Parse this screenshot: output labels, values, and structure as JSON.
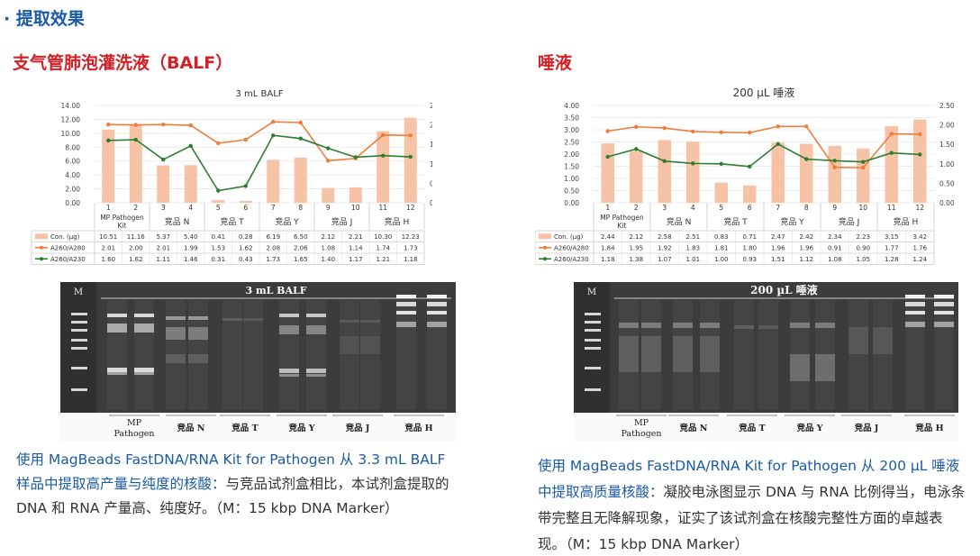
{
  "section_title": "· 提取效果",
  "left": {
    "sample_title": "支气管肺泡灌洗液（BALF）",
    "caption_highlight": "使用 MagBeads FastDNA/RNA Kit for Pathogen 从 3.3 mL BALF 样品中提取高产量与纯度的核酸：",
    "caption_body": "与竞品试剂盒相比，本试剂盒提取的 DNA 和 RNA 产量高、纯度好。（M：15 kbp DNA Marker）",
    "gel": {
      "title": "3 mL BALF",
      "marker_label": "M",
      "lane_group_labels": [
        "MP Pathogen",
        "竞品 N",
        "竞品 T",
        "竞品 Y",
        "竞品 J",
        "竞品 H"
      ]
    }
  },
  "right": {
    "sample_title": "唾液",
    "caption_highlight": "使用 MagBeads FastDNA/RNA Kit for Pathogen 从 200 µL 唾液中提取高质量核酸：",
    "caption_body": "凝胶电泳图显示 DNA 与 RNA 比例得当，电泳条带完整且无降解现象，证实了该试剂盒在核酸完整性方面的卓越表现。（M：15 kbp DNA Marker）",
    "gel": {
      "title": "200 µL 唾液",
      "marker_label": "M",
      "lane_group_labels": [
        "MP Pathogen",
        "竞品 N",
        "竞品 T",
        "竞品 Y",
        "竞品 J",
        "竞品 H"
      ]
    }
  },
  "colors": {
    "bar": "#f6c3a6",
    "a280": "#ee7d3b",
    "a230": "#2e7d32",
    "title_blue": "#1a5ba6",
    "title_red": "#d41f25"
  },
  "chart_data": [
    {
      "type": "bar",
      "title": "3 mL BALF",
      "categories": [
        "1",
        "2",
        "3",
        "4",
        "5",
        "6",
        "7",
        "8",
        "9",
        "10",
        "11",
        "12"
      ],
      "group_labels": [
        "MP Pathogen Kit",
        "竞品 N",
        "竞品 T",
        "竞品 Y",
        "竞品 J",
        "竞品 H"
      ],
      "ylim": [
        0,
        14
      ],
      "yticks": [
        "0.00",
        "2.00",
        "4.00",
        "6.00",
        "8.00",
        "10.00",
        "12.00",
        "14.00"
      ],
      "y2lim": [
        0,
        2.5
      ],
      "y2ticks": [
        "0.00",
        "0.50",
        "1.00",
        "1.50",
        "2.00",
        "2.50"
      ],
      "series": [
        {
          "name": "Con. (µg)",
          "type": "bar",
          "axis": "left",
          "values": [
            10.51,
            11.16,
            5.37,
            5.4,
            0.41,
            0.28,
            6.19,
            6.5,
            2.12,
            2.21,
            10.3,
            12.23
          ]
        },
        {
          "name": "A260/A280",
          "type": "line",
          "axis": "right",
          "values": [
            2.01,
            2.0,
            2.01,
            1.99,
            1.53,
            1.62,
            2.08,
            2.06,
            1.08,
            1.14,
            1.74,
            1.73
          ]
        },
        {
          "name": "A260/A230",
          "type": "line",
          "axis": "right",
          "values": [
            1.6,
            1.62,
            1.11,
            1.46,
            0.31,
            0.43,
            1.73,
            1.65,
            1.4,
            1.17,
            1.21,
            1.18
          ]
        }
      ]
    },
    {
      "type": "bar",
      "title": "200 µL 唾液",
      "categories": [
        "1",
        "2",
        "3",
        "4",
        "5",
        "6",
        "7",
        "8",
        "9",
        "10",
        "11",
        "12"
      ],
      "group_labels": [
        "MP Pathogen Kit",
        "竞品 N",
        "竞品 T",
        "竞品 Y",
        "竞品 J",
        "竞品 H"
      ],
      "ylim": [
        0,
        4
      ],
      "yticks": [
        "0.00",
        "0.50",
        "1.00",
        "1.50",
        "2.00",
        "2.50",
        "3.00",
        "3.50",
        "4.00"
      ],
      "y2lim": [
        0,
        2.5
      ],
      "y2ticks": [
        "0.00",
        "0.50",
        "1.00",
        "1.50",
        "2.00",
        "2.50"
      ],
      "series": [
        {
          "name": "Con. (µg)",
          "type": "bar",
          "axis": "left",
          "values": [
            2.44,
            2.12,
            2.58,
            2.51,
            0.83,
            0.71,
            2.47,
            2.42,
            2.34,
            2.23,
            3.15,
            3.42
          ]
        },
        {
          "name": "A260/A280",
          "type": "line",
          "axis": "right",
          "values": [
            1.84,
            1.95,
            1.92,
            1.83,
            1.81,
            1.8,
            1.96,
            1.96,
            0.91,
            0.9,
            1.77,
            1.76
          ]
        },
        {
          "name": "A260/A230",
          "type": "line",
          "axis": "right",
          "values": [
            1.18,
            1.38,
            1.07,
            1.01,
            1.0,
            0.93,
            1.51,
            1.12,
            1.08,
            1.05,
            1.28,
            1.24
          ]
        }
      ]
    }
  ]
}
